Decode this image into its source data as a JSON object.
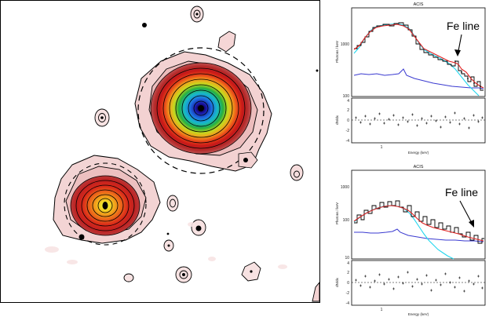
{
  "panels": [
    {
      "title": "ACIS",
      "y_ticks": [
        "1000",
        "100"
      ],
      "x_ticks": [
        "1"
      ],
      "resid_ticks": [
        "4",
        "2",
        "0",
        "-2",
        "-4"
      ],
      "ylabel": "Photons / keV",
      "resid_label": "dN/dx",
      "xlabel": "Energy (keV)",
      "annotation": "Fe line"
    },
    {
      "title": "ACIS",
      "y_ticks": [
        "1000",
        "100",
        "10"
      ],
      "x_ticks": [
        "1"
      ],
      "resid_ticks": [
        "4",
        "2",
        "0",
        "-2",
        "-4"
      ],
      "ylabel": "Photons / keV",
      "resid_label": "dN/dx",
      "xlabel": "Energy (keV)",
      "annotation": "Fe line"
    }
  ],
  "colors": {
    "data_histogram": "#000000",
    "total_model": "#e02020",
    "thermal_component": "#22d6ee",
    "powerlaw_component": "#3a3ad0",
    "contours": "#000000",
    "ring": "#000000"
  }
}
